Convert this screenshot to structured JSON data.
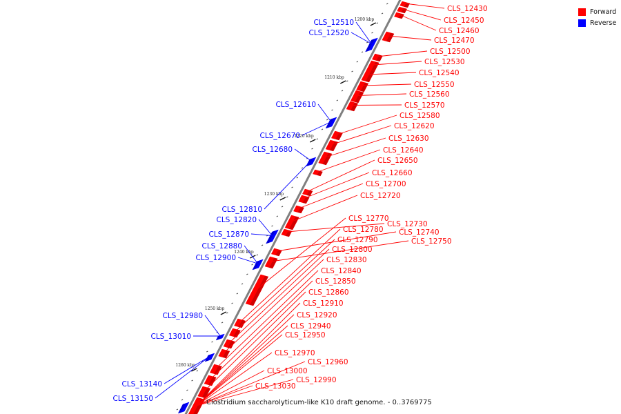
{
  "legend": {
    "forward": {
      "label": "Forward",
      "color": "#ff0000"
    },
    "reverse": {
      "label": "Reverse",
      "color": "#0000ff"
    }
  },
  "caption": "Clostridium saccharolyticum-like K10 draft genome. - 0..3769775",
  "axis_color": "#7f7f7f",
  "ticks": [
    "1200 kbp",
    "1210 kbp",
    "1220 kbp",
    "1230 kbp",
    "1240 kbp",
    "1250 kbp",
    "1260 kbp"
  ],
  "genes": [
    {
      "name": "CLS_12430",
      "strand": "forward"
    },
    {
      "name": "CLS_12450",
      "strand": "forward"
    },
    {
      "name": "CLS_12460",
      "strand": "forward"
    },
    {
      "name": "CLS_12470",
      "strand": "forward"
    },
    {
      "name": "CLS_12500",
      "strand": "forward"
    },
    {
      "name": "CLS_12510",
      "strand": "reverse"
    },
    {
      "name": "CLS_12520",
      "strand": "reverse"
    },
    {
      "name": "CLS_12530",
      "strand": "forward"
    },
    {
      "name": "CLS_12540",
      "strand": "forward"
    },
    {
      "name": "CLS_12550",
      "strand": "forward"
    },
    {
      "name": "CLS_12560",
      "strand": "forward"
    },
    {
      "name": "CLS_12570",
      "strand": "forward"
    },
    {
      "name": "CLS_12580",
      "strand": "forward"
    },
    {
      "name": "CLS_12610",
      "strand": "reverse"
    },
    {
      "name": "CLS_12620",
      "strand": "forward"
    },
    {
      "name": "CLS_12630",
      "strand": "forward"
    },
    {
      "name": "CLS_12640",
      "strand": "forward"
    },
    {
      "name": "CLS_12650",
      "strand": "forward"
    },
    {
      "name": "CLS_12660",
      "strand": "forward"
    },
    {
      "name": "CLS_12670",
      "strand": "reverse"
    },
    {
      "name": "CLS_12680",
      "strand": "reverse"
    },
    {
      "name": "CLS_12700",
      "strand": "forward"
    },
    {
      "name": "CLS_12720",
      "strand": "forward"
    },
    {
      "name": "CLS_12730",
      "strand": "forward"
    },
    {
      "name": "CLS_12740",
      "strand": "forward"
    },
    {
      "name": "CLS_12750",
      "strand": "forward"
    },
    {
      "name": "CLS_12770",
      "strand": "forward"
    },
    {
      "name": "CLS_12780",
      "strand": "forward"
    },
    {
      "name": "CLS_12790",
      "strand": "forward"
    },
    {
      "name": "CLS_12800",
      "strand": "forward"
    },
    {
      "name": "CLS_12810",
      "strand": "reverse"
    },
    {
      "name": "CLS_12820",
      "strand": "reverse"
    },
    {
      "name": "CLS_12830",
      "strand": "forward"
    },
    {
      "name": "CLS_12840",
      "strand": "forward"
    },
    {
      "name": "CLS_12850",
      "strand": "forward"
    },
    {
      "name": "CLS_12860",
      "strand": "forward"
    },
    {
      "name": "CLS_12870",
      "strand": "reverse"
    },
    {
      "name": "CLS_12880",
      "strand": "reverse"
    },
    {
      "name": "CLS_12900",
      "strand": "reverse"
    },
    {
      "name": "CLS_12910",
      "strand": "forward"
    },
    {
      "name": "CLS_12920",
      "strand": "forward"
    },
    {
      "name": "CLS_12940",
      "strand": "forward"
    },
    {
      "name": "CLS_12950",
      "strand": "forward"
    },
    {
      "name": "CLS_12960",
      "strand": "forward"
    },
    {
      "name": "CLS_12970",
      "strand": "forward"
    },
    {
      "name": "CLS_12980",
      "strand": "reverse"
    },
    {
      "name": "CLS_12990",
      "strand": "forward"
    },
    {
      "name": "CLS_13000",
      "strand": "forward"
    },
    {
      "name": "CLS_13010",
      "strand": "reverse"
    },
    {
      "name": "CLS_13030",
      "strand": "forward"
    },
    {
      "name": "CLS_13140",
      "strand": "reverse"
    },
    {
      "name": "CLS_13150",
      "strand": "reverse"
    }
  ]
}
